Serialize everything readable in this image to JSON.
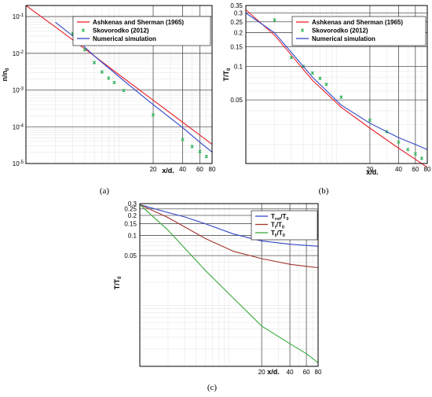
{
  "chart_data": [
    {
      "panel_label": "(a)",
      "type": "line",
      "log_x": true,
      "log_y": true,
      "xlabel": "x/d.",
      "ylabel": "n/n",
      "ylabel_sub": "0",
      "xlim": [
        1,
        80
      ],
      "ylim": [
        1e-05,
        0.2
      ],
      "x_ticks": [
        20,
        40,
        60,
        80
      ],
      "y_ticks": [
        {
          "value": 1e-05,
          "base": "10",
          "exp": "-5"
        },
        {
          "value": 0.0001,
          "base": "10",
          "exp": "-4"
        },
        {
          "value": 0.001,
          "base": "10",
          "exp": "-3"
        },
        {
          "value": 0.01,
          "base": "10",
          "exp": "-2"
        },
        {
          "value": 0.1,
          "base": "10",
          "exp": "-1"
        }
      ],
      "legend_position": "top-right",
      "series": [
        {
          "name": "Ashkenas and Sherman (1965)",
          "style": "line",
          "color": "#e8202a",
          "x": [
            1,
            2,
            5,
            10,
            20,
            40,
            80
          ],
          "y": [
            0.2,
            0.052,
            0.0085,
            0.0021,
            0.00053,
            0.000133,
            3.32e-05
          ]
        },
        {
          "name": "Skovorodko (2012)",
          "style": "markers",
          "color": "#2fb35a",
          "x": [
            3,
            4,
            5,
            6,
            7,
            8,
            10,
            20,
            40,
            50,
            60,
            70
          ],
          "y": [
            0.034,
            0.0125,
            0.0056,
            0.0031,
            0.0021,
            0.0016,
            0.00097,
            0.00021,
            4.5e-05,
            2.9e-05,
            2.1e-05,
            1.55e-05
          ]
        },
        {
          "name": "Numerical simulation",
          "style": "line",
          "color": "#3246c8",
          "x": [
            2,
            3,
            5,
            10,
            20,
            40,
            60,
            80
          ],
          "y": [
            0.07,
            0.03,
            0.0085,
            0.0018,
            0.0004,
            9.5e-05,
            3.8e-05,
            2.05e-05
          ]
        }
      ]
    },
    {
      "panel_label": "(b)",
      "type": "line",
      "log_x": true,
      "log_y": true,
      "xlabel": "x/d.",
      "ylabel": "T/T",
      "ylabel_sub": "0",
      "xlim": [
        1,
        80
      ],
      "ylim": [
        0.0135,
        0.35
      ],
      "x_ticks": [
        20,
        40,
        60,
        80
      ],
      "y_ticks": [
        {
          "value": 0.35,
          "label": "0.35"
        },
        {
          "value": 0.3,
          "label": "0.3"
        },
        {
          "value": 0.25,
          "label": "0.25"
        },
        {
          "value": 0.2,
          "label": "0.2"
        },
        {
          "value": 0.15,
          "label": "0.15"
        },
        {
          "value": 0.1,
          "label": "0.1"
        },
        {
          "value": 0.05,
          "label": "0.05"
        }
      ],
      "legend_position": "top-right",
      "series": [
        {
          "name": "Ashkenas and Sherman (1965)",
          "style": "line",
          "color": "#e8202a",
          "x": [
            1,
            2,
            5,
            10,
            20,
            40,
            80
          ],
          "y": [
            0.32,
            0.19,
            0.075,
            0.043,
            0.028,
            0.0185,
            0.0125
          ]
        },
        {
          "name": "Skovorodko (2012)",
          "style": "markers",
          "color": "#2fb35a",
          "x": [
            2,
            3,
            4,
            5,
            6,
            7,
            10,
            20,
            30,
            40,
            50,
            60,
            70
          ],
          "y": [
            0.26,
            0.12,
            0.1,
            0.087,
            0.078,
            0.069,
            0.053,
            0.033,
            0.026,
            0.021,
            0.018,
            0.0165,
            0.015
          ]
        },
        {
          "name": "Numerical simulation",
          "style": "line",
          "color": "#3246c8",
          "x": [
            1,
            2,
            5,
            10,
            20,
            40,
            60,
            80
          ],
          "y": [
            0.3,
            0.2,
            0.08,
            0.045,
            0.031,
            0.023,
            0.02,
            0.018
          ]
        }
      ]
    },
    {
      "panel_label": "(c)",
      "type": "line",
      "log_x": true,
      "log_y": true,
      "xlabel": "x/d.",
      "ylabel": "T/T",
      "ylabel_sub": "0",
      "xlim": [
        1,
        80
      ],
      "ylim": [
        0.0011,
        0.3
      ],
      "x_ticks": [
        20,
        40,
        60,
        80
      ],
      "y_ticks": [
        {
          "value": 0.3,
          "label": "0.3"
        },
        {
          "value": 0.25,
          "label": "0.25"
        },
        {
          "value": 0.2,
          "label": "0.2"
        },
        {
          "value": 0.15,
          "label": "0.15"
        },
        {
          "value": 0.1,
          "label": "0.1"
        },
        {
          "value": 0.05,
          "label": "0.05"
        }
      ],
      "legend_position": "top-right",
      "series": [
        {
          "name": "T",
          "name_sub": "rot",
          "name_suffix": "/T",
          "name_suffix_sub": "0",
          "style": "line",
          "color": "#3246c8",
          "x": [
            1,
            2,
            3,
            5,
            10,
            20,
            40,
            60,
            80
          ],
          "y": [
            0.29,
            0.22,
            0.19,
            0.15,
            0.105,
            0.083,
            0.074,
            0.071,
            0.069
          ]
        },
        {
          "name": "T",
          "name_sub": "t",
          "name_suffix": "/T",
          "name_suffix_sub": "0",
          "style": "line",
          "color": "#a0352d",
          "x": [
            1,
            2,
            3,
            5,
            10,
            20,
            40,
            60,
            80
          ],
          "y": [
            0.29,
            0.185,
            0.135,
            0.09,
            0.058,
            0.045,
            0.037,
            0.0345,
            0.033
          ]
        },
        {
          "name": "T",
          "name_sub": "‖",
          "name_suffix": "/T",
          "name_suffix_sub": "0",
          "style": "line",
          "color": "#3aa83a",
          "x": [
            1,
            2,
            3,
            5,
            10,
            20,
            40,
            60,
            80
          ],
          "y": [
            0.29,
            0.12,
            0.065,
            0.03,
            0.0115,
            0.0044,
            0.0024,
            0.0017,
            0.00125
          ]
        }
      ]
    }
  ]
}
